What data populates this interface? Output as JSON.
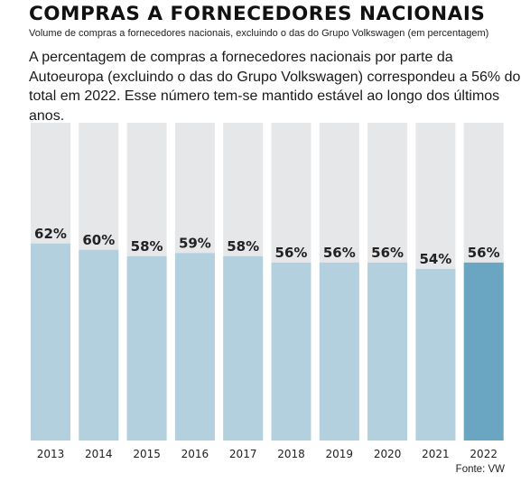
{
  "header": {
    "title": "COMPRAS A FORNECEDORES NACIONAIS",
    "subtitle": "Volume de compras a fornecedores nacionais, excluindo o das do Grupo Volkswagen (em percentagem)",
    "description": "A percentagem de compras a fornecedores nacionais por parte da Autoeuropa (excluindo o das do Grupo Volkswagen) correspondeu a 56% do total em 2022. Esse número tem-se mantido estável ao longo dos últimos anos."
  },
  "chart_data": {
    "type": "bar",
    "categories": [
      "2013",
      "2014",
      "2015",
      "2016",
      "2017",
      "2018",
      "2019",
      "2020",
      "2021",
      "2022"
    ],
    "values": [
      62,
      60,
      58,
      59,
      58,
      56,
      56,
      56,
      54,
      56
    ],
    "data_labels": [
      "62%",
      "60%",
      "58%",
      "59%",
      "58%",
      "56%",
      "56%",
      "56%",
      "54%",
      "56%"
    ],
    "ylim": [
      0,
      100
    ],
    "highlight_category": "2022",
    "colors": {
      "background_bar": "#e6e7e9",
      "bar": "#b3d0df",
      "highlight": "#6aa6c2"
    }
  },
  "footer": {
    "source": "Fonte: VW"
  }
}
